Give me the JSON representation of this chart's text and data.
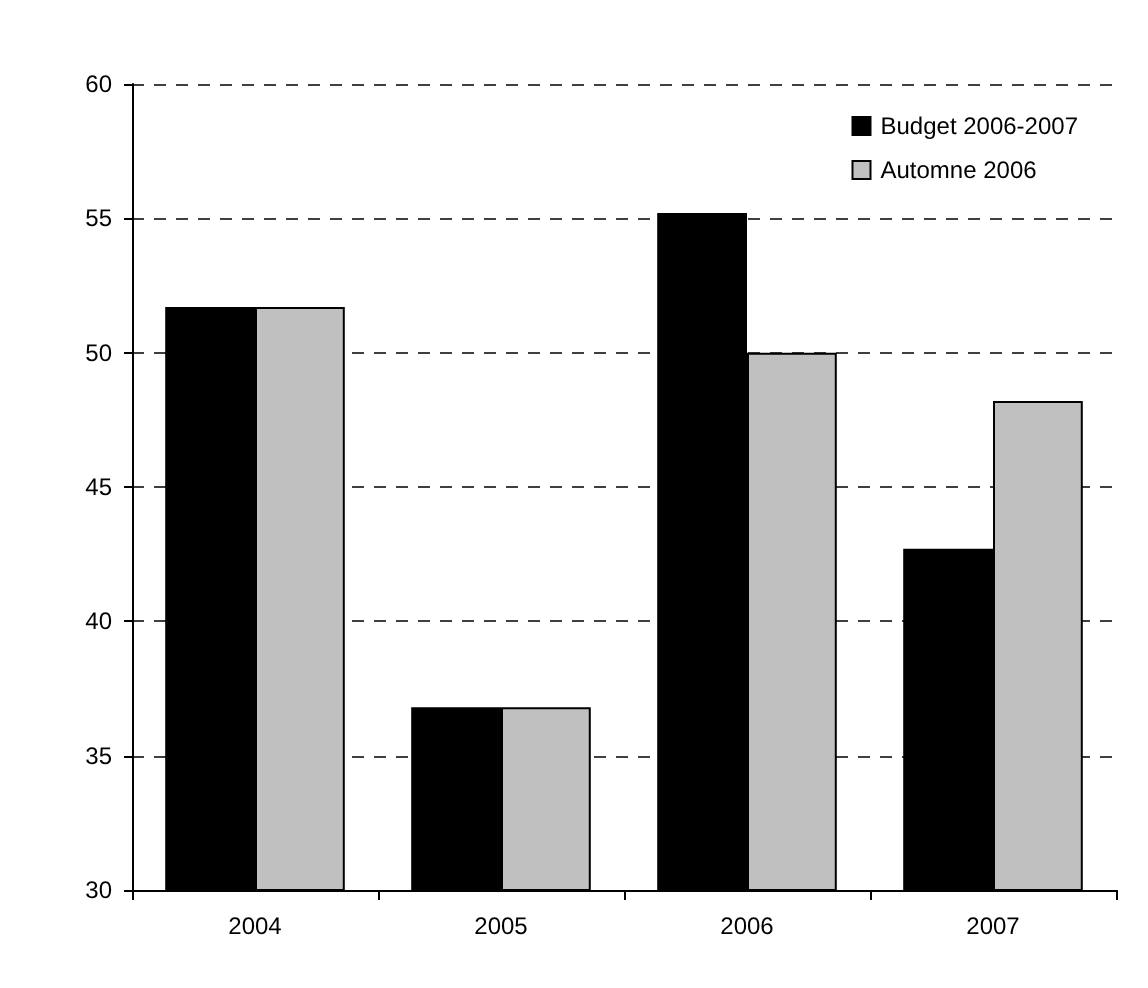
{
  "chart_data": {
    "type": "bar",
    "categories": [
      "2004",
      "2005",
      "2006",
      "2007"
    ],
    "series": [
      {
        "name": "Budget 2006-2007",
        "color": "#000000",
        "values": [
          51.7,
          36.8,
          55.2,
          42.7
        ]
      },
      {
        "name": "Automne 2006",
        "color": "#c0c0c0",
        "values": [
          51.7,
          36.8,
          50.0,
          48.2
        ]
      }
    ],
    "ylim": [
      30,
      60
    ],
    "yticks": [
      30,
      35,
      40,
      45,
      50,
      55,
      60
    ],
    "grid": "y",
    "legend": "top right"
  }
}
